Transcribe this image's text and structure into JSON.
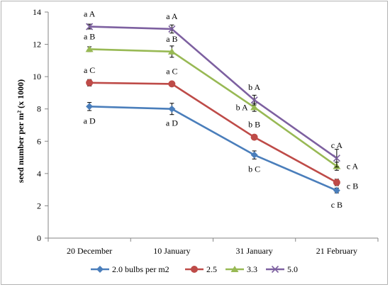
{
  "chart_data": {
    "type": "line",
    "ylabel": "seed number per m² (x 1000)",
    "ylim": [
      0,
      14
    ],
    "yticks": [
      0,
      2,
      4,
      6,
      8,
      10,
      12,
      14
    ],
    "categories": [
      "20 December",
      "10 January",
      "31 January",
      "21 February"
    ],
    "grid": false,
    "legend_position": "bottom",
    "series": [
      {
        "name": "2.0 bulbs per m2",
        "color": "#4a7ebb",
        "marker": "diamond",
        "values": [
          8.15,
          8.0,
          5.15,
          2.95
        ],
        "errors": [
          0.25,
          0.35,
          0.25,
          0.15
        ],
        "labels": [
          "a  D",
          "a  D",
          "b  C",
          "c  B"
        ],
        "label_pos": [
          "below",
          "below",
          "below",
          "below"
        ]
      },
      {
        "name": "2.5",
        "color": "#be4b48",
        "marker": "circle",
        "values": [
          9.62,
          9.55,
          6.25,
          3.45
        ],
        "errors": [
          0.2,
          0.15,
          0.15,
          0.2
        ],
        "labels": [
          "a  C",
          "a  C",
          "b  B",
          "c  B"
        ],
        "label_pos": [
          "above",
          "above",
          "above",
          "right-low"
        ]
      },
      {
        "name": "3.3",
        "color": "#98b954",
        "marker": "triangle",
        "values": [
          11.7,
          11.55,
          8.1,
          4.45
        ],
        "errors": [
          0.15,
          0.35,
          0.25,
          0.25
        ],
        "labels": [
          "a  B",
          "a  B",
          "b  A",
          "c  A"
        ],
        "label_pos": [
          "above",
          "above",
          "left",
          "right"
        ]
      },
      {
        "name": "5.0",
        "color": "#7d60a0",
        "marker": "x",
        "values": [
          13.1,
          12.95,
          8.55,
          4.95
        ],
        "errors": [
          0.15,
          0.25,
          0.3,
          0.55
        ],
        "labels": [
          "a  A",
          "a  A",
          "b  A",
          "c  A"
        ],
        "label_pos": [
          "above",
          "above",
          "above",
          "above"
        ]
      }
    ]
  }
}
